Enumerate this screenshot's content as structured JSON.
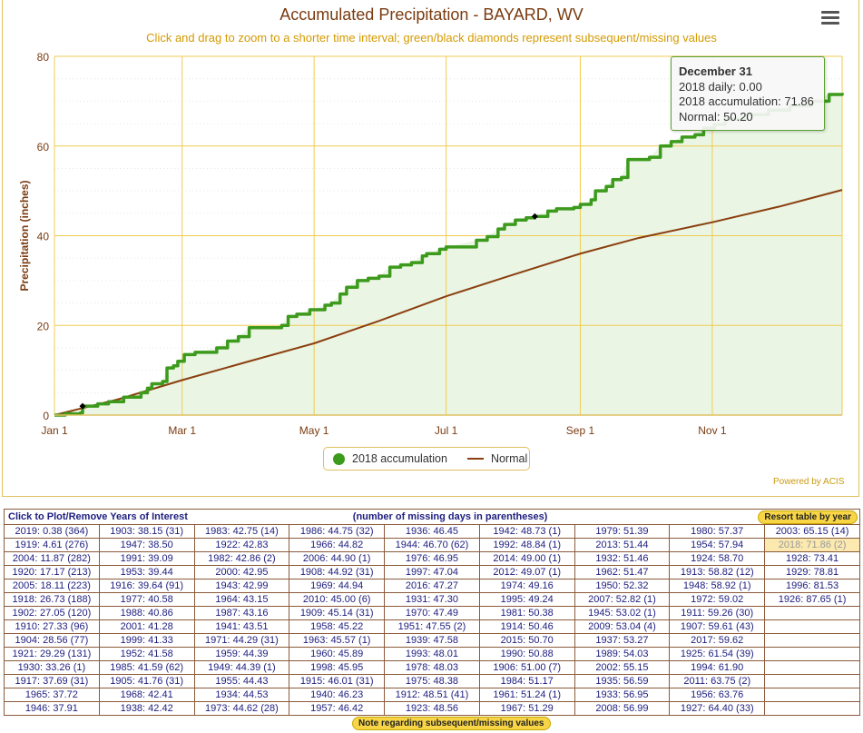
{
  "chart_data": {
    "type": "line",
    "title": "Accumulated Precipitation - BAYARD, WV",
    "subtitle": "Click and drag to zoom to a shorter time interval; green/black diamonds represent subsequent/missing values",
    "ylabel": "Precipitation (inches)",
    "xlabel": "",
    "ylim": [
      0,
      80
    ],
    "yticks": [
      "0",
      "20",
      "40",
      "60",
      "80"
    ],
    "xlim_day_of_year": [
      0,
      364
    ],
    "xticks": [
      {
        "label": "Jan 1",
        "day": 0
      },
      {
        "label": "Mar 1",
        "day": 59
      },
      {
        "label": "May 1",
        "day": 120
      },
      {
        "label": "Jul 1",
        "day": 181
      },
      {
        "label": "Sep 1",
        "day": 243
      },
      {
        "label": "Nov 1",
        "day": 304
      }
    ],
    "series": [
      {
        "name": "2018 accumulation",
        "color": "#3c9a1c",
        "x": [
          0,
          5,
          12,
          13,
          20,
          25,
          32,
          40,
          43,
          45,
          50,
          52,
          55,
          57,
          60,
          65,
          75,
          80,
          85,
          90,
          105,
          108,
          112,
          118,
          125,
          128,
          132,
          135,
          140,
          145,
          150,
          155,
          160,
          165,
          170,
          172,
          178,
          181,
          195,
          200,
          205,
          208,
          213,
          218,
          222,
          228,
          232,
          240,
          243,
          248,
          250,
          255,
          258,
          262,
          265,
          275,
          280,
          285,
          290,
          296,
          300,
          305,
          310,
          320,
          330,
          340,
          350,
          358,
          364
        ],
        "y": [
          0,
          0.3,
          0.5,
          2.0,
          2.5,
          3.0,
          4.0,
          5.0,
          6.0,
          7.0,
          7.5,
          10.5,
          11.0,
          12.0,
          13.5,
          14.0,
          15.0,
          16.5,
          17.5,
          19.5,
          20.0,
          22.0,
          22.5,
          23.5,
          24.5,
          25.0,
          27.0,
          28.5,
          30.0,
          30.5,
          31.0,
          33.0,
          33.5,
          34.0,
          35.5,
          36.0,
          37.0,
          37.5,
          39.0,
          39.8,
          41.5,
          42.5,
          43.5,
          44.0,
          44.3,
          45.5,
          46.0,
          46.3,
          47.0,
          48.0,
          50.0,
          51.0,
          52.5,
          53.0,
          57.0,
          57.5,
          60.0,
          61.0,
          62.0,
          62.5,
          64.0,
          64.8,
          66.0,
          67.0,
          68.0,
          69.0,
          70.0,
          71.5,
          71.86
        ]
      },
      {
        "name": "Normal",
        "color": "#8b3f0f",
        "x": [
          0,
          30,
          59,
          90,
          120,
          150,
          181,
          210,
          243,
          270,
          304,
          335,
          364
        ],
        "y": [
          0,
          3.6,
          7.8,
          12.0,
          16.0,
          21.0,
          26.5,
          31.0,
          36.0,
          39.5,
          43.0,
          46.5,
          50.2
        ]
      }
    ],
    "missing_markers": [
      {
        "day": 13,
        "value": 2.0
      },
      {
        "day": 222,
        "value": 44.3
      }
    ],
    "legend": "bottom-center",
    "grid": true
  },
  "tooltip": {
    "date": "December 31",
    "daily": "2018 daily: 0.00",
    "accum": "2018 accumulation: 71.86",
    "normal": "Normal: 50.20"
  },
  "credit": "Powered by ACIS",
  "table": {
    "header_left": "Click to Plot/Remove Years of Interest",
    "header_center": "(number of missing days in parentheses)",
    "resort_button": "Resort table by year",
    "note_button": "Note regarding subsequent/missing values",
    "highlighted": "2018: 71.86 (2)",
    "columns": [
      [
        "2019: 0.38 (364)",
        "1919: 4.61 (276)",
        "2004: 11.87 (282)",
        "1920: 17.17 (213)",
        "2005: 18.11 (223)",
        "1918: 26.73 (188)",
        "1902: 27.05 (120)",
        "1910: 27.33 (96)",
        "1904: 28.56 (77)",
        "1921: 29.29 (131)",
        "1930: 33.26 (1)",
        "1917: 37.69 (31)",
        "1965: 37.72",
        "1946: 37.91"
      ],
      [
        "1903: 38.15 (31)",
        "1947: 38.50",
        "1991: 39.09",
        "1953: 39.44",
        "1916: 39.64 (91)",
        "1977: 40.58",
        "1988: 40.86",
        "2001: 41.28",
        "1999: 41.33",
        "1952: 41.58",
        "1985: 41.59 (62)",
        "1905: 41.76 (31)",
        "1968: 42.41",
        "1938: 42.42"
      ],
      [
        "1983: 42.75 (14)",
        "1922: 42.83",
        "1982: 42.86 (2)",
        "2000: 42.95",
        "1943: 42.99",
        "1964: 43.15",
        "1987: 43.16",
        "1941: 43.51",
        "1971: 44.29 (31)",
        "1959: 44.39",
        "1949: 44.39 (1)",
        "1955: 44.43",
        "1934: 44.53",
        "1973: 44.62 (28)"
      ],
      [
        "1986: 44.75 (32)",
        "1966: 44.82",
        "2006: 44.90 (1)",
        "1908: 44.92 (31)",
        "1969: 44.94",
        "2010: 45.00 (6)",
        "1909: 45.14 (31)",
        "1958: 45.22",
        "1963: 45.57 (1)",
        "1960: 45.89",
        "1998: 45.95",
        "1915: 46.01 (31)",
        "1940: 46.23",
        "1957: 46.42"
      ],
      [
        "1936: 46.45",
        "1944: 46.70 (62)",
        "1976: 46.95",
        "1997: 47.04",
        "2016: 47.27",
        "1931: 47.30",
        "1970: 47.49",
        "1951: 47.55 (2)",
        "1939: 47.58",
        "1993: 48.01",
        "1978: 48.03",
        "1975: 48.38",
        "1912: 48.51 (41)",
        "1923: 48.56"
      ],
      [
        "1942: 48.73 (1)",
        "1992: 48.84 (1)",
        "2014: 49.00 (1)",
        "2012: 49.07 (1)",
        "1974: 49.16",
        "1995: 49.24",
        "1981: 50.38",
        "1914: 50.46",
        "2015: 50.70",
        "1990: 50.88",
        "1906: 51.00 (7)",
        "1984: 51.17",
        "1961: 51.24 (1)",
        "1967: 51.29"
      ],
      [
        "1979: 51.39",
        "2013: 51.44",
        "1932: 51.46",
        "1962: 51.47",
        "1950: 52.32",
        "2007: 52.82 (1)",
        "1945: 53.02 (1)",
        "2009: 53.04 (4)",
        "1937: 53.27",
        "1989: 54.03",
        "2002: 55.15",
        "1935: 56.59",
        "1933: 56.95",
        "2008: 56.99"
      ],
      [
        "1980: 57.37",
        "1954: 57.94",
        "1924: 58.70",
        "1913: 58.82 (12)",
        "1948: 58.92 (1)",
        "1972: 59.02",
        "1911: 59.26 (30)",
        "1907: 59.61 (43)",
        "2017: 59.62",
        "1925: 61.54 (39)",
        "1994: 61.90",
        "2011: 63.75 (2)",
        "1956: 63.76",
        "1927: 64.40 (33)"
      ],
      [
        "2003: 65.15 (14)",
        "2018: 71.86 (2)",
        "1928: 73.41",
        "1929: 78.81",
        "1996: 81.53",
        "1926: 87.65 (1)"
      ]
    ]
  }
}
